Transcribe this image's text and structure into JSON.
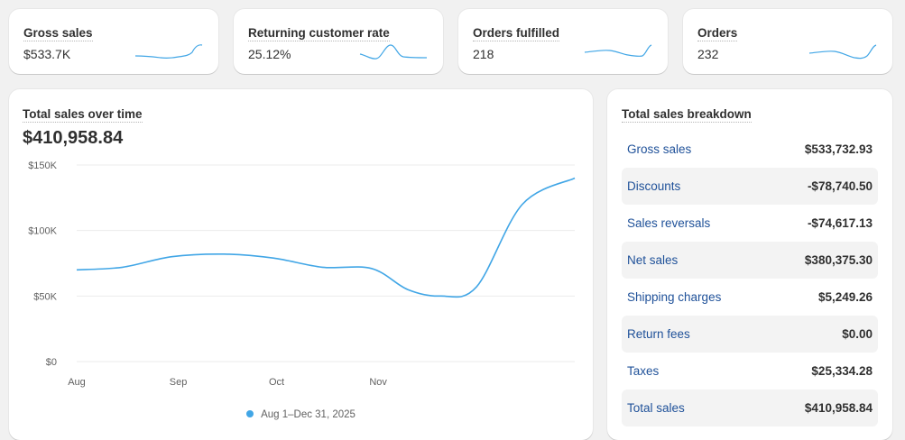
{
  "metrics": [
    {
      "title": "Gross sales",
      "value": "$533.7K"
    },
    {
      "title": "Returning customer rate",
      "value": "25.12%"
    },
    {
      "title": "Orders fulfilled",
      "value": "218"
    },
    {
      "title": "Orders",
      "value": "232"
    }
  ],
  "sales_over_time": {
    "title": "Total sales over time",
    "total": "$410,958.84",
    "legend": "Aug 1–Dec 31, 2025"
  },
  "chart_data": {
    "type": "line",
    "title": "Total sales over time",
    "x_tick_labels": [
      "Aug",
      "Sep",
      "Oct",
      "Nov"
    ],
    "y_tick_labels": [
      "$0",
      "$50K",
      "$100K",
      "$150K"
    ],
    "ylim": [
      0,
      150000
    ],
    "grid": true,
    "series": [
      {
        "name": "Aug 1–Dec 31, 2025",
        "color": "#41a6e6",
        "x": [
          "2025-08-01",
          "2025-08-15",
          "2025-08-30",
          "2025-09-15",
          "2025-09-30",
          "2025-10-15",
          "2025-10-30",
          "2025-11-10",
          "2025-11-20",
          "2025-12-01",
          "2025-12-15",
          "2025-12-31"
        ],
        "values": [
          70000,
          72000,
          80000,
          82000,
          79000,
          72000,
          71000,
          55000,
          50000,
          57000,
          120000,
          140000
        ]
      }
    ]
  },
  "breakdown": {
    "title": "Total sales breakdown",
    "rows": [
      {
        "label": "Gross sales",
        "value": "$533,732.93"
      },
      {
        "label": "Discounts",
        "value": "-$78,740.50"
      },
      {
        "label": "Sales reversals",
        "value": "-$74,617.13"
      },
      {
        "label": "Net sales",
        "value": "$380,375.30"
      },
      {
        "label": "Shipping charges",
        "value": "$5,249.26"
      },
      {
        "label": "Return fees",
        "value": "$0.00"
      },
      {
        "label": "Taxes",
        "value": "$25,334.28"
      },
      {
        "label": "Total sales",
        "value": "$410,958.84"
      }
    ]
  }
}
